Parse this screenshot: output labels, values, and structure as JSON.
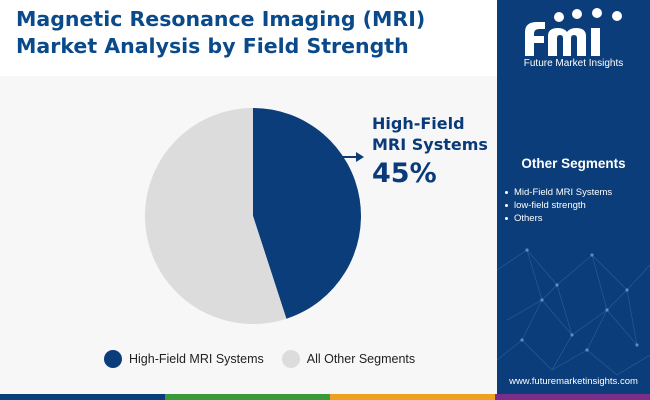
{
  "title": {
    "line1": "Magnetic Resonance Imaging (MRI)",
    "line2": "Market Analysis by Field Strength"
  },
  "chart_data": {
    "type": "pie",
    "title": "Magnetic Resonance Imaging (MRI) Market Analysis by Field Strength",
    "slices": [
      {
        "label": "High-Field MRI Systems",
        "value": 45,
        "color": "#0b3d7a"
      },
      {
        "label": "All Other Segments",
        "value": 55,
        "color": "#dcdcdc"
      }
    ],
    "callout": {
      "label_line1": "High-Field",
      "label_line2": "MRI Systems",
      "value_text": "45%"
    },
    "legend": [
      "High-Field MRI Systems",
      "All Other Segments"
    ],
    "legend_position": "bottom"
  },
  "sidebar": {
    "brand": "Future Market Insights",
    "segments_title": "Other Segments",
    "segments": [
      "Mid-Field MRI Systems",
      "low-field strength",
      "Others"
    ],
    "website": "www.futuremarketinsights.com"
  },
  "colors": {
    "title": "#0a4a8a",
    "primary": "#0b3d7a",
    "other": "#dcdcdc",
    "bar": [
      "#0b3d7a",
      "#3a9a3a",
      "#f0a020",
      "#7a2e8a",
      "#0b3d7a"
    ]
  }
}
